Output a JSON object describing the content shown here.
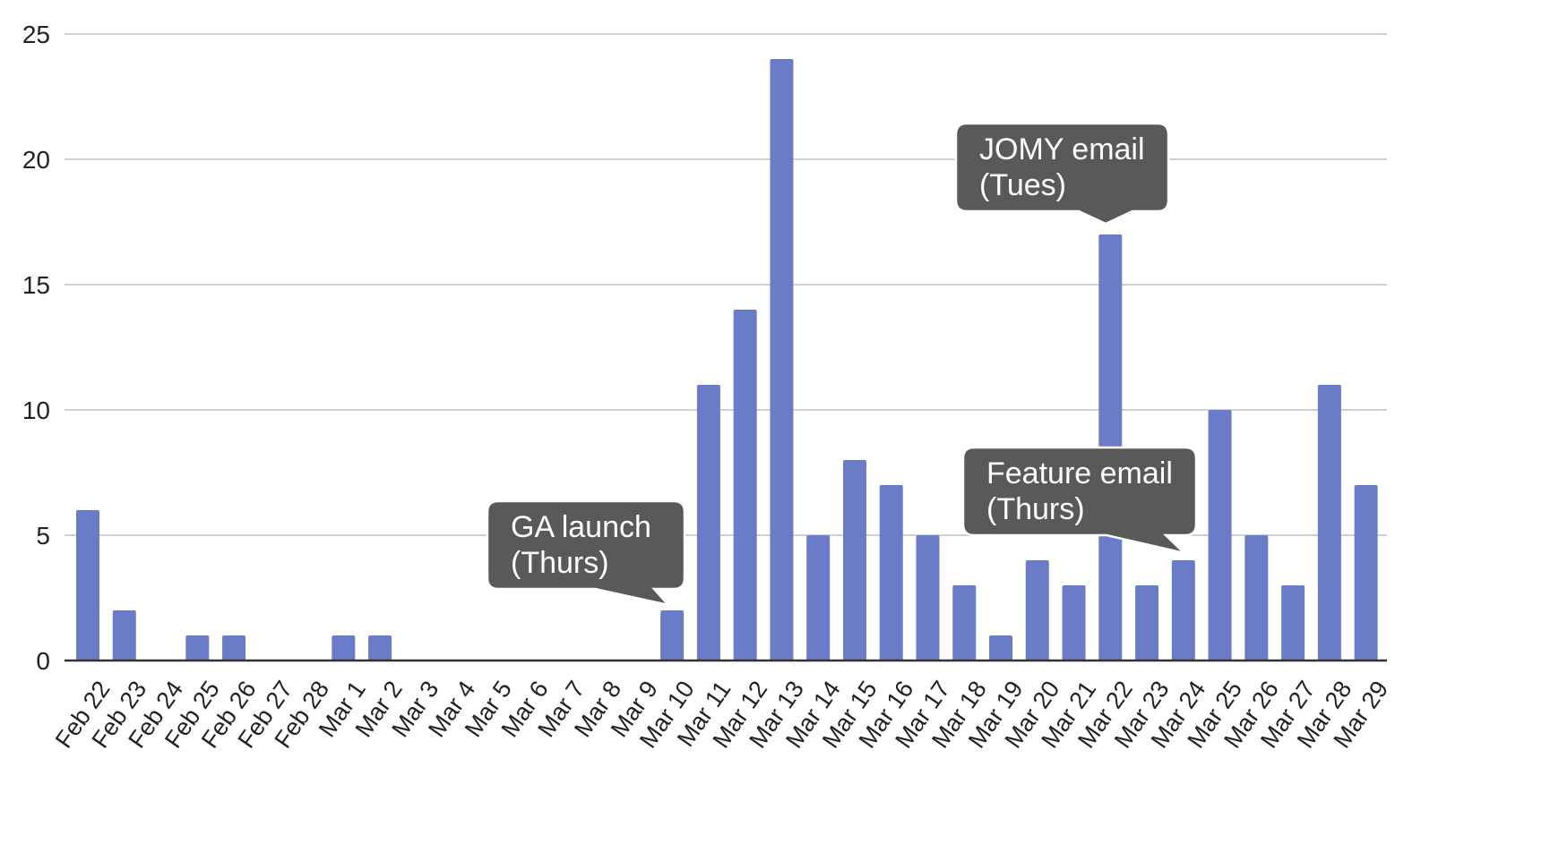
{
  "chart_data": {
    "type": "bar",
    "title": "",
    "xlabel": "",
    "ylabel": "",
    "ylim": [
      0,
      25
    ],
    "yticks": [
      "0",
      "5",
      "10",
      "15",
      "20",
      "25"
    ],
    "grid": true,
    "legend": "none",
    "bar_color": "#6a7bc8",
    "categories": [
      "Feb 22",
      "Feb 23",
      "Feb 24",
      "Feb 25",
      "Feb 26",
      "Feb 27",
      "Feb 28",
      "Mar 1",
      "Mar 2",
      "Mar 3",
      "Mar 4",
      "Mar 5",
      "Mar 6",
      "Mar 7",
      "Mar 8",
      "Mar 9",
      "Mar 10",
      "Mar 11",
      "Mar 12",
      "Mar 13",
      "Mar 14",
      "Mar 15",
      "Mar 16",
      "Mar 17",
      "Mar 18",
      "Mar 19",
      "Mar 20",
      "Mar 21",
      "Mar 22",
      "Mar 23",
      "Mar 24",
      "Mar 25",
      "Mar 26",
      "Mar 27",
      "Mar 28",
      "Mar 29"
    ],
    "values": [
      6,
      2,
      0,
      1,
      1,
      0,
      0,
      1,
      1,
      0,
      0,
      0,
      0,
      0,
      0,
      0,
      2,
      11,
      14,
      24,
      5,
      8,
      7,
      5,
      3,
      1,
      4,
      3,
      17,
      3,
      4,
      10,
      5,
      3,
      11,
      7
    ],
    "annotations": [
      {
        "lines": [
          "GA launch",
          "(Thurs)"
        ],
        "category": "Mar 10",
        "color": "#595959"
      },
      {
        "lines": [
          "JOMY email",
          "(Tues)"
        ],
        "category": "Mar 22",
        "color": "#595959"
      },
      {
        "lines": [
          "Feature email",
          "(Thurs)"
        ],
        "category": "Mar 24",
        "color": "#595959"
      }
    ]
  }
}
